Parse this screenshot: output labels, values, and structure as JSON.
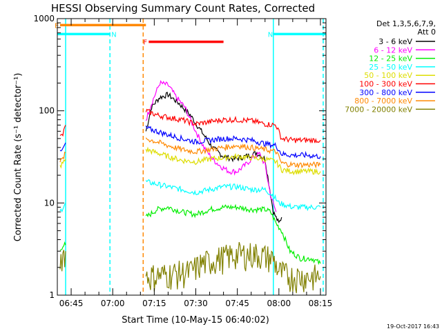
{
  "chart_data": {
    "type": "line",
    "title": "HESSI Observing Summary Count Rates, Corrected",
    "xlabel": "Start Time (10-May-15 06:40:02)",
    "ylabel": "Corrected Count Rate (s⁻¹ detector⁻¹)",
    "y_scale": "log",
    "ylim": [
      1,
      1000
    ],
    "xlim": [
      "06:40",
      "08:17"
    ],
    "x_ticks": [
      "06:45",
      "07:00",
      "07:15",
      "07:30",
      "07:45",
      "08:00",
      "08:15"
    ],
    "y_ticks": [
      "1",
      "10",
      "100",
      "1000"
    ],
    "legend_header": [
      "Det 1,3,5,6,7,9,",
      "Att 0"
    ],
    "legend_position": "right",
    "footer_date": "19-Oct-2017 16:43",
    "grid": false,
    "series": [
      {
        "name": "3 - 6 keV",
        "color": "#000000",
        "segments": [
          [
            [
              "07:12",
              60
            ],
            [
              "07:14",
              110
            ],
            [
              "07:17",
              140
            ],
            [
              "07:20",
              150
            ],
            [
              "07:24",
              120
            ],
            [
              "07:28",
              90
            ],
            [
              "07:32",
              60
            ],
            [
              "07:36",
              40
            ],
            [
              "07:40",
              32
            ],
            [
              "07:44",
              30
            ],
            [
              "07:48",
              32
            ],
            [
              "07:52",
              35
            ],
            [
              "07:55",
              30
            ],
            [
              "07:58",
              8
            ],
            [
              "08:00",
              6
            ],
            [
              "08:01",
              7
            ]
          ]
        ]
      },
      {
        "name": "6 - 12 keV",
        "color": "#ff00ff",
        "segments": [
          [
            [
              "07:12",
              80
            ],
            [
              "07:14",
              120
            ],
            [
              "07:17",
              200
            ],
            [
              "07:20",
              190
            ],
            [
              "07:23",
              140
            ],
            [
              "07:26",
              110
            ],
            [
              "07:30",
              60
            ],
            [
              "07:33",
              40
            ],
            [
              "07:36",
              30
            ],
            [
              "07:39",
              25
            ],
            [
              "07:42",
              22
            ],
            [
              "07:45",
              22
            ],
            [
              "07:48",
              26
            ],
            [
              "07:51",
              32
            ],
            [
              "07:53",
              34
            ],
            [
              "07:55",
              26
            ],
            [
              "07:57",
              12
            ],
            [
              "07:59",
              8
            ]
          ]
        ]
      },
      {
        "name": "12 - 25 keV",
        "color": "#00ee00",
        "segments": [
          [
            [
              "06:41",
              3
            ],
            [
              "06:42",
              3.5
            ],
            [
              "06:43",
              3.5
            ]
          ],
          [
            [
              "07:12",
              7
            ],
            [
              "07:16",
              8.5
            ],
            [
              "07:20",
              9
            ],
            [
              "07:25",
              8
            ],
            [
              "07:30",
              7.5
            ],
            [
              "07:35",
              8.5
            ],
            [
              "07:40",
              9
            ],
            [
              "07:45",
              9
            ],
            [
              "07:50",
              8.5
            ],
            [
              "07:55",
              8.5
            ],
            [
              "07:57",
              8
            ],
            [
              "07:59",
              6
            ],
            [
              "08:01",
              5
            ],
            [
              "08:04",
              3
            ],
            [
              "08:08",
              2.5
            ],
            [
              "08:12",
              2.5
            ],
            [
              "08:15",
              2.2
            ]
          ]
        ]
      },
      {
        "name": "25 - 50 keV",
        "color": "#00ffff",
        "segments": [
          [
            [
              "06:41",
              8
            ],
            [
              "06:42",
              9
            ],
            [
              "06:43",
              10
            ]
          ],
          [
            [
              "07:12",
              17
            ],
            [
              "07:16",
              16
            ],
            [
              "07:20",
              15
            ],
            [
              "07:25",
              14
            ],
            [
              "07:30",
              13
            ],
            [
              "07:35",
              14
            ],
            [
              "07:40",
              15
            ],
            [
              "07:45",
              15
            ],
            [
              "07:50",
              14
            ],
            [
              "07:55",
              14
            ],
            [
              "07:58",
              12
            ],
            [
              "08:00",
              10
            ],
            [
              "08:05",
              9
            ],
            [
              "08:10",
              9
            ],
            [
              "08:15",
              9
            ]
          ]
        ]
      },
      {
        "name": "50 - 100 keV",
        "color": "#dddd00",
        "segments": [
          [
            [
              "06:41",
              25
            ],
            [
              "06:42",
              27
            ],
            [
              "06:43",
              30
            ]
          ],
          [
            [
              "07:12",
              38
            ],
            [
              "07:16",
              35
            ],
            [
              "07:20",
              32
            ],
            [
              "07:25",
              29
            ],
            [
              "07:30",
              28
            ],
            [
              "07:35",
              30
            ],
            [
              "07:40",
              31
            ],
            [
              "07:45",
              32
            ],
            [
              "07:50",
              31
            ],
            [
              "07:55",
              30
            ],
            [
              "07:59",
              28
            ],
            [
              "08:01",
              23
            ],
            [
              "08:05",
              22
            ],
            [
              "08:10",
              22
            ],
            [
              "08:15",
              22
            ]
          ]
        ]
      },
      {
        "name": "100 - 300 keV",
        "color": "#ff0000",
        "segments": [
          [
            [
              "06:41",
              52
            ],
            [
              "06:42",
              55
            ],
            [
              "06:43",
              70
            ]
          ],
          [
            [
              "07:12",
              100
            ],
            [
              "07:16",
              90
            ],
            [
              "07:20",
              85
            ],
            [
              "07:25",
              80
            ],
            [
              "07:30",
              72
            ],
            [
              "07:35",
              76
            ],
            [
              "07:40",
              80
            ],
            [
              "07:45",
              80
            ],
            [
              "07:50",
              78
            ],
            [
              "07:55",
              72
            ],
            [
              "07:59",
              70
            ],
            [
              "08:01",
              50
            ],
            [
              "08:05",
              48
            ],
            [
              "08:10",
              48
            ],
            [
              "08:15",
              48
            ]
          ]
        ]
      },
      {
        "name": "300 - 800 keV",
        "color": "#0000ff",
        "segments": [
          [
            [
              "06:41",
              35
            ],
            [
              "06:42",
              38
            ],
            [
              "06:43",
              45
            ]
          ],
          [
            [
              "07:12",
              65
            ],
            [
              "07:16",
              60
            ],
            [
              "07:20",
              55
            ],
            [
              "07:25",
              50
            ],
            [
              "07:30",
              46
            ],
            [
              "07:35",
              48
            ],
            [
              "07:40",
              50
            ],
            [
              "07:45",
              50
            ],
            [
              "07:50",
              48
            ],
            [
              "07:55",
              44
            ],
            [
              "07:59",
              42
            ],
            [
              "08:01",
              34
            ],
            [
              "08:05",
              33
            ],
            [
              "08:10",
              33
            ],
            [
              "08:15",
              32
            ]
          ]
        ]
      },
      {
        "name": "800 - 7000 keV",
        "color": "#ff8800",
        "segments": [
          [
            [
              "06:41",
              28
            ],
            [
              "06:42",
              30
            ],
            [
              "06:43",
              35
            ]
          ],
          [
            [
              "07:12",
              50
            ],
            [
              "07:16",
              46
            ],
            [
              "07:20",
              42
            ],
            [
              "07:25",
              38
            ],
            [
              "07:30",
              36
            ],
            [
              "07:35",
              38
            ],
            [
              "07:40",
              40
            ],
            [
              "07:45",
              42
            ],
            [
              "07:50",
              40
            ],
            [
              "07:55",
              38
            ],
            [
              "07:59",
              36
            ],
            [
              "08:01",
              27
            ],
            [
              "08:05",
              26
            ],
            [
              "08:10",
              26
            ],
            [
              "08:15",
              26
            ]
          ]
        ]
      },
      {
        "name": "7000 - 20000 keV",
        "color": "#808000",
        "segments": [
          [
            [
              "06:41",
              2.5
            ],
            [
              "06:42",
              2.8
            ],
            [
              "06:43",
              3
            ]
          ],
          [
            [
              "07:12",
              1.6
            ],
            [
              "07:20",
              1.7
            ],
            [
              "07:28",
              1.8
            ],
            [
              "07:32",
              2.2
            ],
            [
              "07:38",
              2.5
            ],
            [
              "07:45",
              2.8
            ],
            [
              "07:52",
              2.8
            ],
            [
              "07:58",
              2.5
            ],
            [
              "08:00",
              1.8
            ],
            [
              "08:04",
              1.6
            ],
            [
              "08:10",
              1.6
            ],
            [
              "08:15",
              1.6
            ]
          ]
        ]
      }
    ],
    "annotations": [
      {
        "label": "E",
        "color": "#ff8800",
        "start": "06:41",
        "end": "07:12",
        "level": 850
      },
      {
        "label": "N",
        "color": "#00ffff",
        "start": "06:40",
        "end": "06:59",
        "level": 680
      },
      {
        "label": "N",
        "color": "#00ffff",
        "start": "07:58",
        "end": "08:17",
        "level": 680
      },
      {
        "label": "F",
        "color": "#ff0000",
        "start": "07:13",
        "end": "07:40",
        "level": 560
      }
    ],
    "vlines": [
      {
        "time": "06:43",
        "color": "#00ffff",
        "style": "solid"
      },
      {
        "time": "06:59",
        "color": "#00ffff",
        "style": "dashed"
      },
      {
        "time": "07:11",
        "color": "#ff8800",
        "style": "dashed"
      },
      {
        "time": "07:58",
        "color": "#00ffff",
        "style": "solid"
      },
      {
        "time": "08:16",
        "color": "#00ffff",
        "style": "dashed"
      }
    ]
  }
}
